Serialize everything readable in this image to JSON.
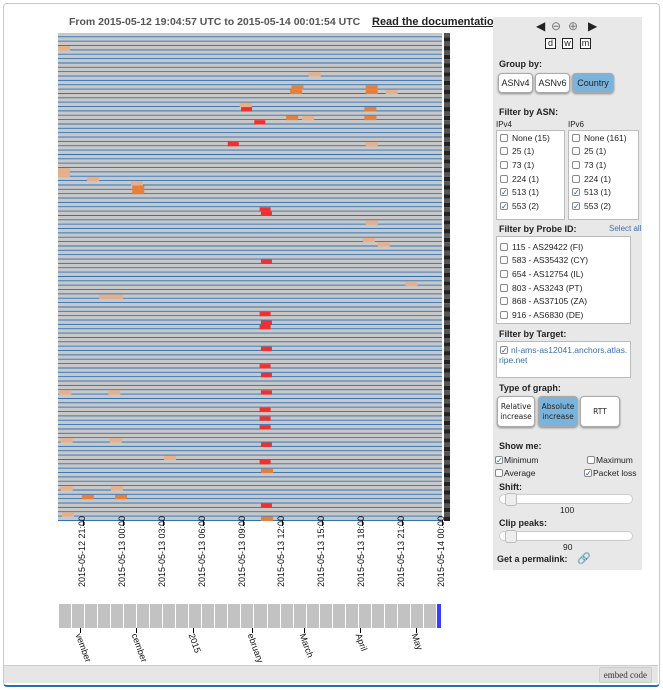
{
  "header": {
    "range": "From 2015-05-12 19:04:57 UTC to 2015-05-14 00:01:54 UTC",
    "doc_link": "Read the documentation"
  },
  "chart_data": {
    "type": "heatmap",
    "rows": 112,
    "x_start": "2015-05-12 19:04:57",
    "x_end": "2015-05-14 00:01:54",
    "span_hours": 28.95,
    "xticks": [
      {
        "label": "2015-05-12 21:00",
        "h": 1.92
      },
      {
        "label": "2015-05-13 00:00",
        "h": 4.92
      },
      {
        "label": "2015-05-13 03:00",
        "h": 7.92
      },
      {
        "label": "2015-05-13 06:00",
        "h": 10.92
      },
      {
        "label": "2015-05-13 09:00",
        "h": 13.92
      },
      {
        "label": "2015-05-13 12:00",
        "h": 16.92
      },
      {
        "label": "2015-05-13 15:00",
        "h": 19.92
      },
      {
        "label": "2015-05-13 18:00",
        "h": 22.92
      },
      {
        "label": "2015-05-13 21:00",
        "h": 25.92
      },
      {
        "label": "2015-05-14 00:00",
        "h": 28.92
      }
    ],
    "cells": [
      [
        3,
        0,
        1
      ],
      [
        9,
        18.9,
        1
      ],
      [
        12,
        17.6,
        2
      ],
      [
        12,
        23.2,
        2
      ],
      [
        13,
        17.5,
        2
      ],
      [
        13,
        23.2,
        2
      ],
      [
        13,
        24.7,
        1
      ],
      [
        16,
        13.7,
        1
      ],
      [
        17,
        13.8,
        3
      ],
      [
        17,
        23.1,
        2
      ],
      [
        19,
        17.2,
        2
      ],
      [
        19,
        18.4,
        1
      ],
      [
        19,
        23.1,
        2
      ],
      [
        20,
        14.8,
        3
      ],
      [
        25,
        12.8,
        3
      ],
      [
        25,
        23.2,
        1
      ],
      [
        31,
        0,
        1
      ],
      [
        32,
        0,
        1
      ],
      [
        33,
        2.2,
        1
      ],
      [
        34,
        5.5,
        1
      ],
      [
        35,
        5.6,
        2
      ],
      [
        36,
        5.6,
        2
      ],
      [
        40,
        15.2,
        3
      ],
      [
        41,
        15.3,
        3
      ],
      [
        43,
        23.2,
        1
      ],
      [
        47,
        23.0,
        1
      ],
      [
        48,
        24.1,
        1
      ],
      [
        52,
        15.3,
        3
      ],
      [
        57,
        26.2,
        1
      ],
      [
        60,
        3.1,
        1
      ],
      [
        60,
        4.0,
        1
      ],
      [
        64,
        15.2,
        3
      ],
      [
        66,
        15.3,
        3
      ],
      [
        67,
        15.2,
        3
      ],
      [
        72,
        15.3,
        3
      ],
      [
        76,
        15.2,
        3
      ],
      [
        78,
        15.3,
        3
      ],
      [
        82,
        0.1,
        1
      ],
      [
        82,
        3.8,
        1
      ],
      [
        82,
        15.3,
        3
      ],
      [
        86,
        15.2,
        3
      ],
      [
        88,
        15.2,
        3
      ],
      [
        90,
        15.2,
        3
      ],
      [
        93,
        0.2,
        1
      ],
      [
        93,
        3.9,
        1
      ],
      [
        94,
        15.3,
        3
      ],
      [
        97,
        8,
        1
      ],
      [
        98,
        15.2,
        3
      ],
      [
        100,
        15.3,
        2
      ],
      [
        104,
        0.2,
        1
      ],
      [
        104,
        4.0,
        1
      ],
      [
        106,
        1.8,
        2
      ],
      [
        106,
        4.3,
        2
      ],
      [
        108,
        15.3,
        3
      ],
      [
        110,
        0.3,
        1
      ],
      [
        111,
        15.3,
        2
      ]
    ]
  },
  "minimap": {
    "cells": 29,
    "labels": [
      "vember",
      "cember",
      "2015",
      "ebruary",
      "March",
      "April",
      "May"
    ]
  },
  "sidebar": {
    "group_by_label": "Group by:",
    "group_by": [
      "ASNv4",
      "ASNv6",
      "Country"
    ],
    "group_by_selected": "Country",
    "filter_asn_label": "Filter by ASN:",
    "ipv4_label": "IPv4",
    "ipv6_label": "IPv6",
    "ipv4": [
      {
        "l": "None (15)",
        "c": false
      },
      {
        "l": "25 (1)",
        "c": false
      },
      {
        "l": "73 (1)",
        "c": false
      },
      {
        "l": "224 (1)",
        "c": false
      },
      {
        "l": "513 (1)",
        "c": true
      },
      {
        "l": "553 (2)",
        "c": true
      }
    ],
    "ipv6": [
      {
        "l": "None (161)",
        "c": false
      },
      {
        "l": "25 (1)",
        "c": false
      },
      {
        "l": "73 (1)",
        "c": false
      },
      {
        "l": "224 (1)",
        "c": false
      },
      {
        "l": "513 (1)",
        "c": true
      },
      {
        "l": "553 (2)",
        "c": true
      }
    ],
    "probe_label": "Filter by Probe ID:",
    "select_all": "Select all",
    "probes": [
      "115 - AS29422 (FI)",
      "583 - AS35432 (CY)",
      "654 - AS12754 (IL)",
      "803 - AS3243 (PT)",
      "868 - AS37105 (ZA)",
      "916 - AS6830 (DE)"
    ],
    "target_label": "Filter by Target:",
    "target": "nl-ams-as12041.anchors.atlas.ripe.net",
    "graph_type_label": "Type of graph:",
    "graph_types": [
      "Relative increase",
      "Absolute increase",
      "RTT"
    ],
    "show_label": "Show me:",
    "minimum": "Minimum",
    "maximum": "Maximum",
    "average": "Average",
    "packet_loss": "Packet loss",
    "shift_label": "Shift:",
    "shift_value": "100",
    "clip_label": "Clip peaks:",
    "clip_value": "90",
    "permalink_label": "Get a permalink:",
    "zoom": {
      "day": "d",
      "week": "w",
      "month": "m"
    }
  },
  "footer": {
    "embed": "embed code"
  }
}
